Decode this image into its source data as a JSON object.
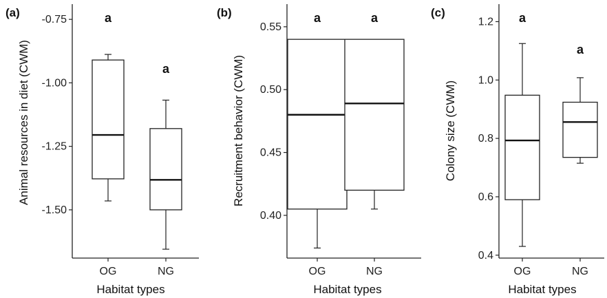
{
  "chart_data": [
    {
      "type": "box",
      "panel_label": "(a)",
      "xlabel": "Habitat types",
      "ylabel": "Animal resources in diet (CWM)",
      "ylim": [
        -1.69,
        -0.69
      ],
      "yticks": [
        -0.75,
        -1.0,
        -1.25,
        -1.5
      ],
      "ytick_labels": [
        "-0.75",
        "-1.00",
        "-1.25",
        "-1.50"
      ],
      "categories": [
        "OG",
        "NG"
      ],
      "boxes": [
        {
          "category": "OG",
          "whisker_low": -1.465,
          "q1": -1.378,
          "median": -1.205,
          "q3": -0.91,
          "whisker_high": -0.888,
          "letter": "a"
        },
        {
          "category": "NG",
          "whisker_low": -1.655,
          "q1": -1.5,
          "median": -1.382,
          "q3": -1.18,
          "whisker_high": -1.068,
          "letter": "a"
        }
      ]
    },
    {
      "type": "box",
      "panel_label": "(b)",
      "xlabel": "Habitat types",
      "ylabel": "Recruitment behavior (CWM)",
      "ylim": [
        0.366,
        0.568
      ],
      "yticks": [
        0.55,
        0.5,
        0.45,
        0.4
      ],
      "ytick_labels": [
        "0.55",
        "0.50",
        "0.45",
        "0.40"
      ],
      "categories": [
        "OG",
        "NG"
      ],
      "boxes": [
        {
          "category": "OG",
          "whisker_low": 0.374,
          "q1": 0.405,
          "median": 0.48,
          "q3": 0.54,
          "whisker_high": 0.54,
          "letter": "a"
        },
        {
          "category": "NG",
          "whisker_low": 0.405,
          "q1": 0.42,
          "median": 0.489,
          "q3": 0.54,
          "whisker_high": 0.54,
          "letter": "a"
        }
      ]
    },
    {
      "type": "box",
      "panel_label": "(c)",
      "xlabel": "Habitat types",
      "ylabel": "Colony size (CWM)",
      "ylim": [
        0.39,
        1.26
      ],
      "yticks": [
        1.2,
        1.0,
        0.8,
        0.6,
        0.4
      ],
      "ytick_labels": [
        "1.2",
        "1.0",
        "0.8",
        "0.6",
        "0.4"
      ],
      "categories": [
        "OG",
        "NG"
      ],
      "boxes": [
        {
          "category": "OG",
          "whisker_low": 0.43,
          "q1": 0.59,
          "median": 0.793,
          "q3": 0.948,
          "whisker_high": 1.125,
          "letter": "a"
        },
        {
          "category": "NG",
          "whisker_low": 0.715,
          "q1": 0.735,
          "median": 0.856,
          "q3": 0.924,
          "whisker_high": 1.008,
          "letter": "a"
        }
      ]
    }
  ]
}
